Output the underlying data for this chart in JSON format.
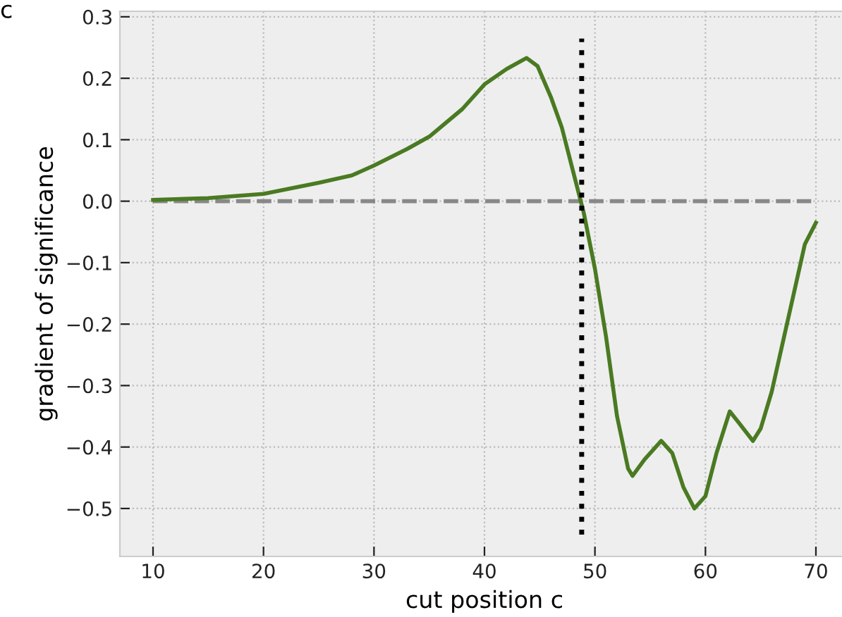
{
  "chart_data": {
    "type": "line",
    "xlabel": "cut position c",
    "ylabel": "gradient of significance",
    "annotations": [
      "c"
    ],
    "x": [
      10,
      15,
      20,
      25,
      28,
      30,
      33,
      35,
      38,
      40,
      42,
      43.8,
      44.8,
      46,
      47,
      48,
      49,
      50,
      51,
      52,
      53,
      53.4,
      54.5,
      56,
      57,
      58,
      59,
      60,
      61,
      62.2,
      63,
      64.3,
      65,
      66,
      67,
      68,
      69,
      70
    ],
    "series": [
      {
        "color": "#4a7a22",
        "values": [
          0.002,
          0.005,
          0.012,
          0.03,
          0.042,
          0.058,
          0.085,
          0.105,
          0.15,
          0.19,
          0.215,
          0.233,
          0.22,
          0.17,
          0.12,
          0.05,
          -0.02,
          -0.11,
          -0.22,
          -0.35,
          -0.435,
          -0.447,
          -0.42,
          -0.39,
          -0.41,
          -0.465,
          -0.5,
          -0.48,
          -0.41,
          -0.342,
          -0.36,
          -0.39,
          -0.37,
          -0.31,
          -0.23,
          -0.15,
          -0.07,
          -0.035
        ]
      }
    ],
    "xlim": [
      7,
      73
    ],
    "ylim": [
      -0.578,
      0.309
    ],
    "xticks": [
      10,
      20,
      30,
      40,
      50,
      60,
      70
    ],
    "yticks": [
      {
        "value": -0.5,
        "label": "−0.5"
      },
      {
        "value": -0.4,
        "label": "−0.4"
      },
      {
        "value": -0.3,
        "label": "−0.3"
      },
      {
        "value": -0.2,
        "label": "−0.2"
      },
      {
        "value": -0.1,
        "label": "−0.1"
      },
      {
        "value": 0,
        "label": "0.0"
      },
      {
        "value": 0.1,
        "label": "0.1"
      },
      {
        "value": 0.2,
        "label": "0.2"
      },
      {
        "value": 0.3,
        "label": "0.3"
      }
    ],
    "ref_lines": [
      {
        "axis": "y",
        "value": 0,
        "color": "#888888",
        "line_style": "dashed"
      },
      {
        "axis": "x",
        "value": 48.8,
        "color": "#000000",
        "line_style": "dotted"
      }
    ],
    "grid": true,
    "legend": false,
    "marker": "none",
    "line_style": "solid"
  }
}
